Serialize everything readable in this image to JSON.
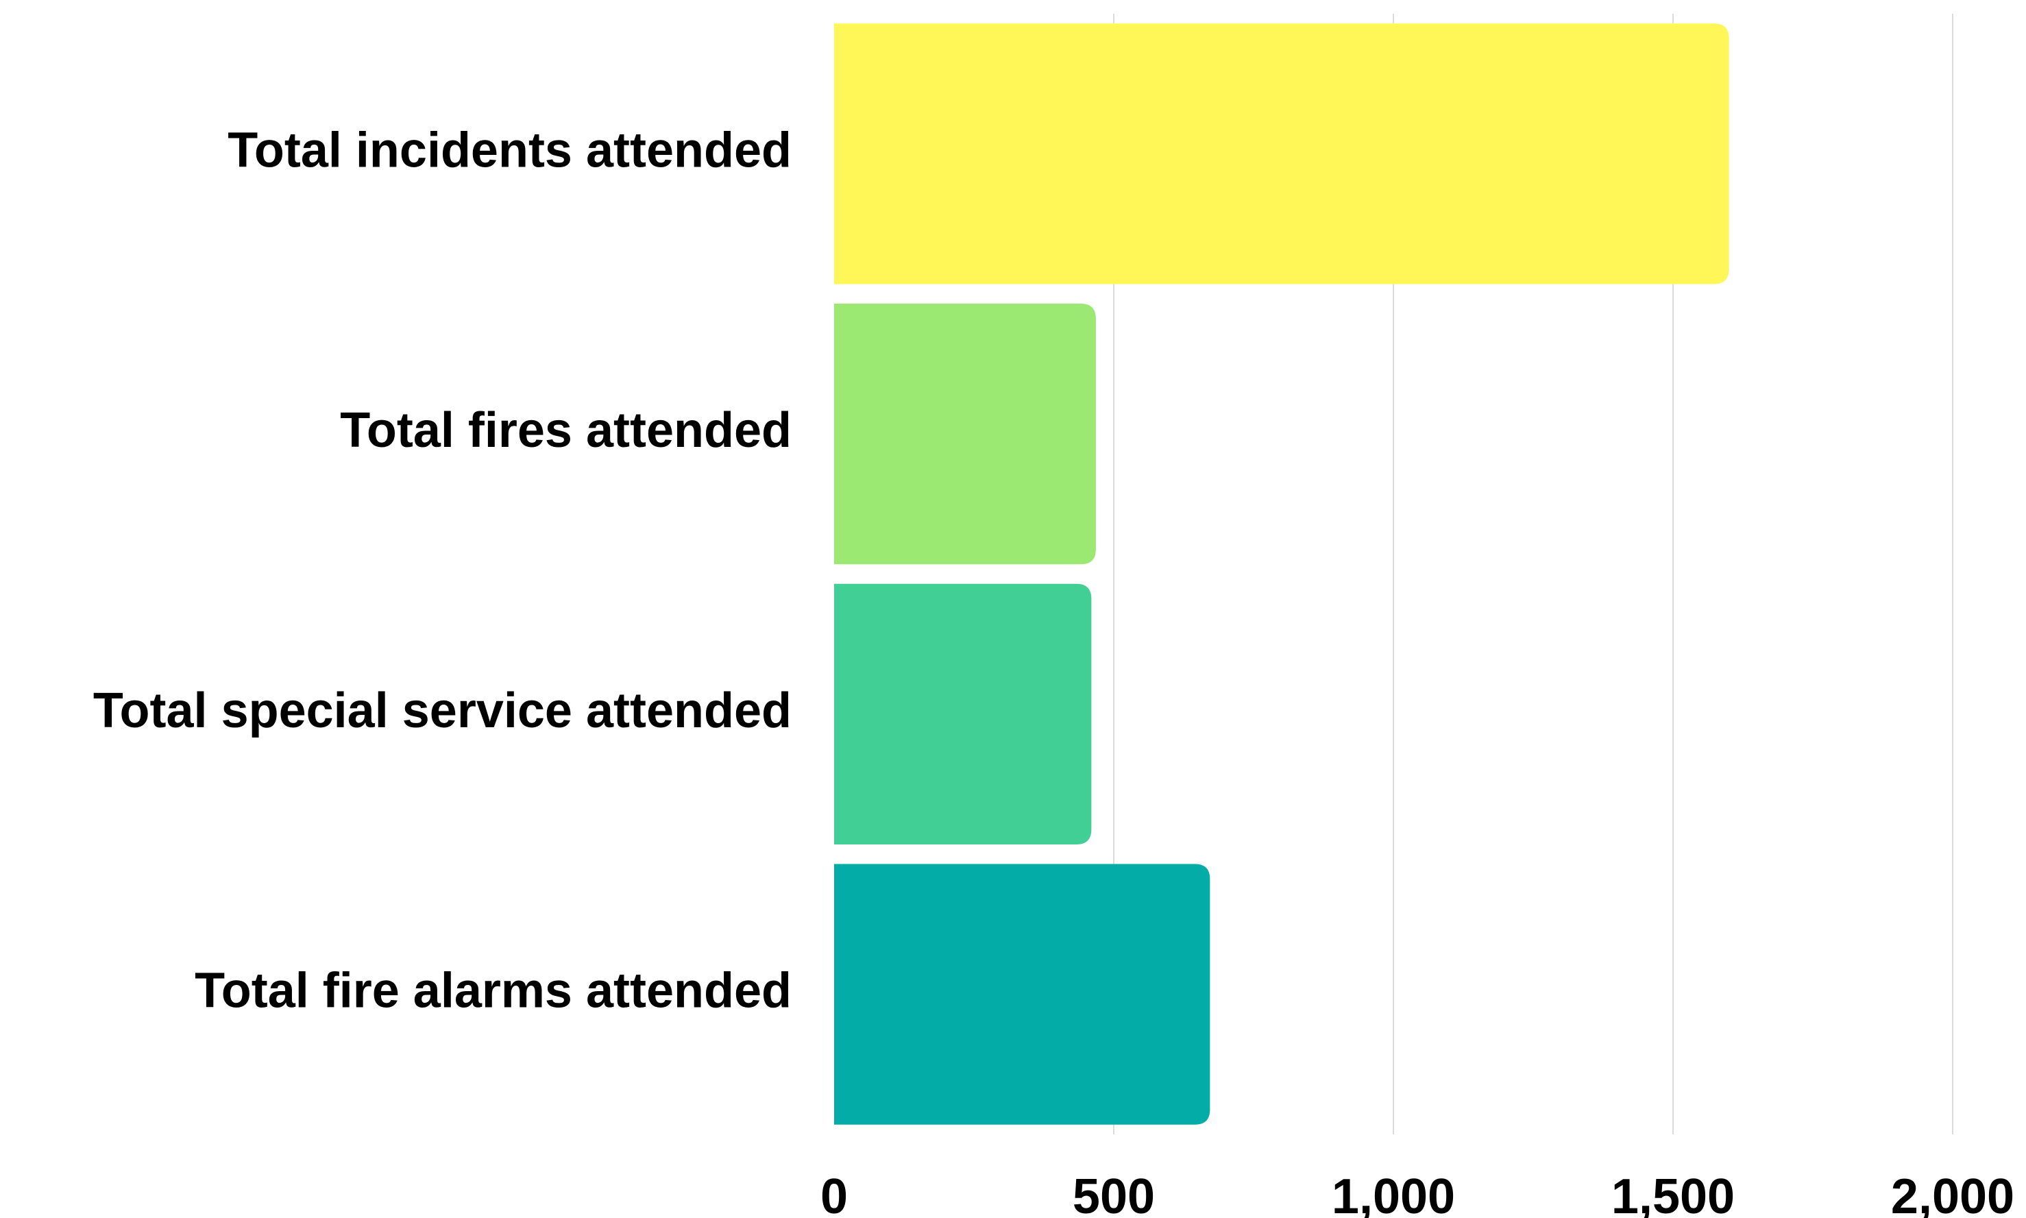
{
  "chart_data": {
    "type": "bar",
    "orientation": "horizontal",
    "categories": [
      "Total incidents attended",
      "Total fires attended",
      "Total special service attended",
      "Total fire alarms attended"
    ],
    "values": [
      1600,
      468,
      460,
      672
    ],
    "colors": [
      "#fff757",
      "#9be872",
      "#42cf96",
      "#04aca8"
    ],
    "xlim": [
      0,
      2000
    ],
    "xticks": [
      0,
      500,
      1000,
      1500,
      2000
    ],
    "xtick_labels": [
      "0",
      "500",
      "1,000",
      "1,500",
      "2,000"
    ],
    "grid": true,
    "legend": "none",
    "title": "",
    "xlabel": "",
    "ylabel": ""
  }
}
